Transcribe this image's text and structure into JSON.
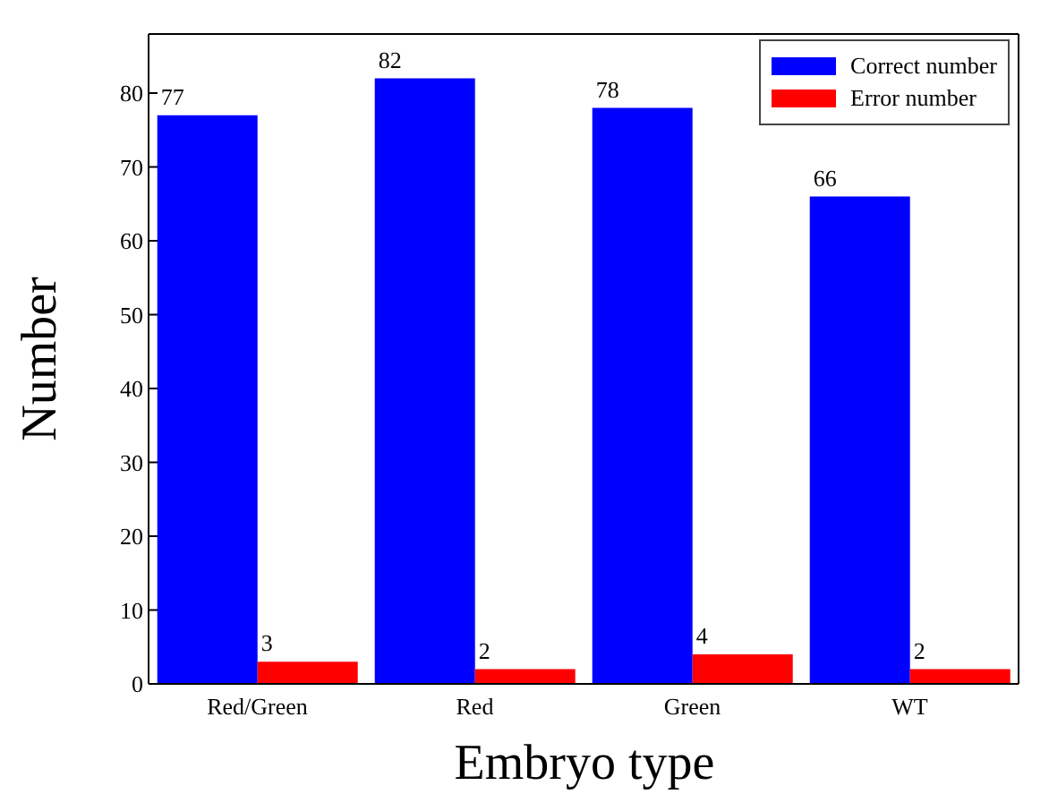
{
  "chart_data": {
    "type": "bar",
    "xlabel": "Embryo type",
    "ylabel": "Number",
    "categories": [
      "Red/Green",
      "Red",
      "Green",
      "WT"
    ],
    "series": [
      {
        "name": "Correct number",
        "color": "#0000ff",
        "values": [
          77,
          82,
          78,
          66
        ]
      },
      {
        "name": "Error number",
        "color": "#ff0000",
        "values": [
          3,
          2,
          4,
          2
        ]
      }
    ],
    "ylim": [
      0,
      88
    ],
    "yticks": [
      0,
      10,
      20,
      30,
      40,
      50,
      60,
      70,
      80
    ],
    "data_labels": true,
    "legend": "top right",
    "grid": false
  }
}
